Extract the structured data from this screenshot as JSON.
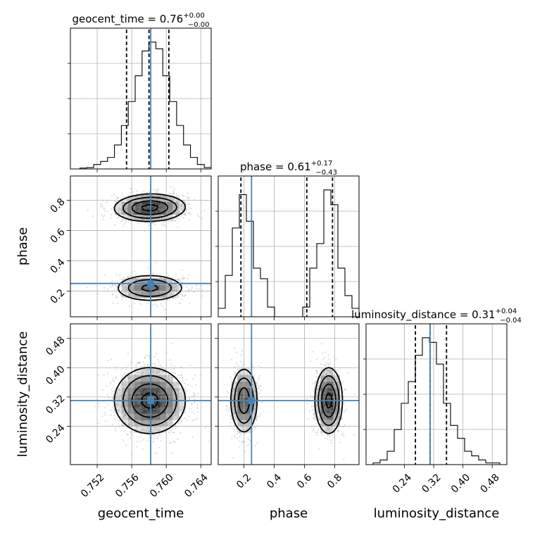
{
  "chart_data": {
    "type": "scatter",
    "plot_kind": "corner",
    "parameters": [
      "geocent_time",
      "phase",
      "luminosity_distance"
    ],
    "axis_labels": [
      "geocent_time",
      "phase",
      "luminosity_distance"
    ],
    "ranges": {
      "geocent_time": [
        0.7489,
        0.7652
      ],
      "phase": [
        0.03,
        0.96
      ],
      "luminosity_distance": [
        0.135,
        0.52
      ]
    },
    "ticks": {
      "geocent_time": [
        0.752,
        0.756,
        0.76,
        0.764
      ],
      "phase": [
        0.2,
        0.4,
        0.6,
        0.8
      ],
      "luminosity_distance": [
        0.24,
        0.32,
        0.4,
        0.48
      ]
    },
    "tick_labels": {
      "geocent_time": [
        "0.752",
        "0.756",
        "0.760",
        "0.764"
      ],
      "phase": [
        "0.2",
        "0.4",
        "0.6",
        "0.8"
      ],
      "luminosity_distance": [
        "0.24",
        "0.32",
        "0.40",
        "0.48"
      ]
    },
    "truths": {
      "geocent_time": 0.7582,
      "phase": 0.25,
      "luminosity_distance": 0.31
    },
    "titles": [
      {
        "param": "geocent_time",
        "text": "geocent_time = 0.76",
        "plus": "+0.00",
        "minus": "−0.00"
      },
      {
        "param": "phase",
        "text": "phase = 0.61",
        "plus": "+0.17",
        "minus": "−0.43"
      },
      {
        "param": "luminosity_distance",
        "text": "luminosity_distance = 0.31",
        "plus": "+0.04",
        "minus": "−0.04"
      }
    ],
    "quantiles": {
      "geocent_time": [
        0.7554,
        0.758,
        0.7603
      ],
      "phase": [
        0.18,
        0.615,
        0.785
      ],
      "luminosity_distance": [
        0.27,
        0.31,
        0.355
      ]
    },
    "histograms": {
      "geocent_time": {
        "edges": [
          0.7489,
          0.75,
          0.7508,
          0.7516,
          0.7524,
          0.7532,
          0.754,
          0.7548,
          0.7556,
          0.7564,
          0.7572,
          0.758,
          0.7588,
          0.7596,
          0.7604,
          0.7612,
          0.762,
          0.7628,
          0.7636,
          0.7644,
          0.7652
        ],
        "counts": [
          0,
          2,
          3,
          10,
          17,
          26,
          54,
          98,
          152,
          210,
          266,
          286,
          271,
          210,
          152,
          98,
          54,
          26,
          10,
          3
        ]
      },
      "phase": {
        "edges": [
          0.03,
          0.0765,
          0.123,
          0.1695,
          0.216,
          0.2625,
          0.309,
          0.3555,
          0.402,
          0.4485,
          0.495,
          0.5415,
          0.588,
          0.6345,
          0.681,
          0.7275,
          0.774,
          0.8205,
          0.867,
          0.9135,
          0.96
        ],
        "counts": [
          20,
          98,
          210,
          289,
          226,
          115,
          90,
          23,
          0,
          0,
          0,
          0,
          23,
          115,
          173,
          300,
          265,
          115,
          50,
          20
        ]
      },
      "luminosity_distance": {
        "edges": [
          0.135,
          0.15425,
          0.1735,
          0.19275,
          0.212,
          0.23125,
          0.2505,
          0.26975,
          0.289,
          0.30825,
          0.3275,
          0.34675,
          0.366,
          0.38525,
          0.4045,
          0.42375,
          0.443,
          0.46225,
          0.4815,
          0.50075,
          0.52
        ],
        "counts": [
          0,
          4,
          11,
          32,
          84,
          147,
          199,
          262,
          304,
          293,
          241,
          147,
          94,
          63,
          32,
          21,
          11,
          4,
          4,
          0
        ]
      }
    },
    "joint_2d": [
      {
        "x": "geocent_time",
        "y": "phase",
        "modes": [
          {
            "cx": 0.7581,
            "cy": 0.75,
            "sx": 0.00205,
            "sy": 0.045,
            "tilt": -0.05,
            "weight": 0.6
          },
          {
            "cx": 0.7581,
            "cy": 0.22,
            "sx": 0.00205,
            "sy": 0.045,
            "tilt": 0.0,
            "weight": 0.4
          }
        ]
      },
      {
        "x": "geocent_time",
        "y": "luminosity_distance",
        "modes": [
          {
            "cx": 0.7581,
            "cy": 0.31,
            "sx": 0.00205,
            "sy": 0.045,
            "tilt": 0.0,
            "weight": 1.0
          }
        ]
      },
      {
        "x": "phase",
        "y": "luminosity_distance",
        "modes": [
          {
            "cx": 0.2,
            "cy": 0.31,
            "sx": 0.045,
            "sy": 0.045,
            "tilt": 0.0,
            "weight": 0.45
          },
          {
            "cx": 0.76,
            "cy": 0.31,
            "sx": 0.045,
            "sy": 0.045,
            "tilt": 0.0,
            "weight": 0.55
          }
        ]
      }
    ],
    "colors": {
      "truth": "#4682b4",
      "contour": "#000000",
      "points": "#8a8a8a"
    }
  }
}
